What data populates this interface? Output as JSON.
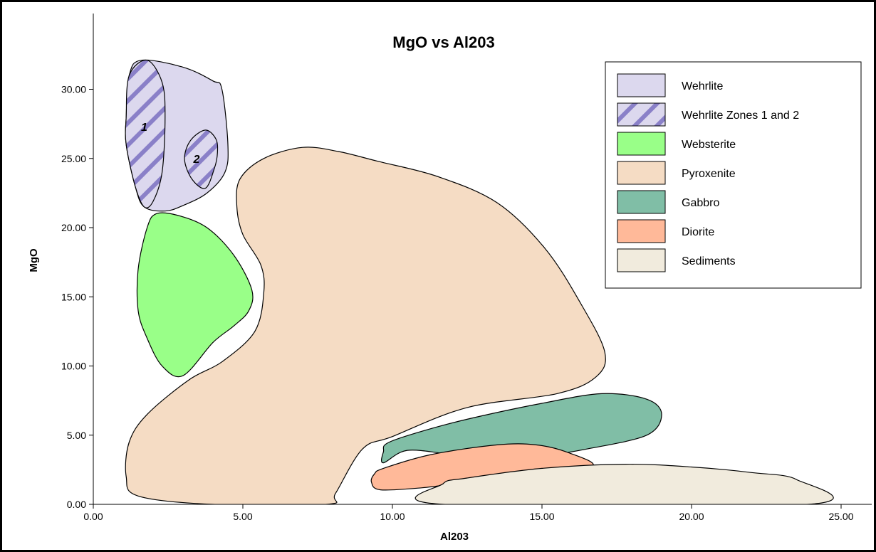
{
  "chart_data": {
    "type": "area",
    "title": "MgO vs Al203",
    "xlabel": "Al203",
    "ylabel": "MgO",
    "xlim": [
      0,
      25.5
    ],
    "ylim": [
      0,
      33
    ],
    "x_ticks": [
      "0.00",
      "5.00",
      "10.00",
      "15.00",
      "20.00",
      "25.00"
    ],
    "y_ticks": [
      "0.00",
      "5.00",
      "10.00",
      "15.00",
      "20.00",
      "25.00",
      "30.00"
    ],
    "legend_position": "top-right",
    "grid": false,
    "legend": [
      {
        "label": "Wehrlite",
        "color": "#dcd8ee",
        "pattern": "solid"
      },
      {
        "label": "Wehrlite Zones 1 and 2",
        "color": "#dcd8ee",
        "pattern": "hatch",
        "hatch_color": "#8a80c8"
      },
      {
        "label": "Websterite",
        "color": "#99ff88",
        "pattern": "solid"
      },
      {
        "label": "Pyroxenite",
        "color": "#f5dcc4",
        "pattern": "solid"
      },
      {
        "label": "Gabbro",
        "color": "#80bea6",
        "pattern": "solid"
      },
      {
        "label": "Diorite",
        "color": "#ffb999",
        "pattern": "solid"
      },
      {
        "label": "Sediments",
        "color": "#f1ebdd",
        "pattern": "solid"
      }
    ],
    "fields": [
      {
        "name": "Pyroxenite",
        "points": [
          [
            5.7,
            25.0
          ],
          [
            7.0,
            25.8
          ],
          [
            8.2,
            25.5
          ],
          [
            9.5,
            24.8
          ],
          [
            11.5,
            23.7
          ],
          [
            13.5,
            21.8
          ],
          [
            15.1,
            18.5
          ],
          [
            16.3,
            14.5
          ],
          [
            17.1,
            11.0
          ],
          [
            16.8,
            9.2
          ],
          [
            15.5,
            8.0
          ],
          [
            12.5,
            7.0
          ],
          [
            10.0,
            4.9
          ],
          [
            9.0,
            4.0
          ],
          [
            8.1,
            0.8
          ],
          [
            7.8,
            0.0
          ],
          [
            4.0,
            0.0
          ],
          [
            1.5,
            0.6
          ],
          [
            1.1,
            2.0
          ],
          [
            1.2,
            4.5
          ],
          [
            1.8,
            6.5
          ],
          [
            3.2,
            9.0
          ],
          [
            4.3,
            10.3
          ],
          [
            5.4,
            12.5
          ],
          [
            5.7,
            15.3
          ],
          [
            5.6,
            17.3
          ],
          [
            5.0,
            19.5
          ],
          [
            4.8,
            21.5
          ],
          [
            4.9,
            23.5
          ]
        ]
      },
      {
        "name": "Websterite",
        "points": [
          [
            2.1,
            21.0
          ],
          [
            2.8,
            20.9
          ],
          [
            3.8,
            20.0
          ],
          [
            4.7,
            18.0
          ],
          [
            5.3,
            15.5
          ],
          [
            5.2,
            14.0
          ],
          [
            4.7,
            12.9
          ],
          [
            4.0,
            11.7
          ],
          [
            3.0,
            9.3
          ],
          [
            2.3,
            10.0
          ],
          [
            1.8,
            12.0
          ],
          [
            1.5,
            14.0
          ],
          [
            1.5,
            17.0
          ],
          [
            1.8,
            20.0
          ]
        ]
      },
      {
        "name": "Wehrlite",
        "points": [
          [
            1.6,
            32.1
          ],
          [
            3.0,
            31.6
          ],
          [
            4.0,
            30.6
          ],
          [
            4.3,
            30.0
          ],
          [
            4.5,
            26.0
          ],
          [
            4.4,
            24.0
          ],
          [
            3.8,
            22.5
          ],
          [
            3.0,
            21.6
          ],
          [
            2.4,
            21.2
          ],
          [
            1.7,
            21.5
          ],
          [
            1.4,
            23.0
          ],
          [
            1.1,
            26.0
          ],
          [
            1.1,
            28.0
          ],
          [
            1.2,
            31.0
          ]
        ]
      },
      {
        "name": "Wehrlite Zones 1 and 2",
        "points": [
          [
            1.8,
            32.1
          ],
          [
            2.3,
            30.5
          ],
          [
            2.4,
            28.0
          ],
          [
            2.3,
            24.0
          ],
          [
            2.0,
            21.9
          ],
          [
            1.7,
            21.5
          ],
          [
            1.4,
            23.0
          ],
          [
            1.1,
            26.0
          ],
          [
            1.1,
            28.0
          ],
          [
            1.2,
            31.0
          ]
        ]
      },
      {
        "name": "Wehrlite Zones 1 and 2",
        "points": [
          [
            3.75,
            27.05
          ],
          [
            4.1,
            26.4
          ],
          [
            4.15,
            25.4
          ],
          [
            4.05,
            24.3
          ],
          [
            3.75,
            22.85
          ],
          [
            3.3,
            23.5
          ],
          [
            3.05,
            24.95
          ],
          [
            3.25,
            26.3
          ]
        ]
      },
      {
        "name": "Gabbro",
        "points": [
          [
            9.9,
            4.5
          ],
          [
            11.5,
            5.6
          ],
          [
            13.0,
            6.4
          ],
          [
            15.0,
            7.3
          ],
          [
            17.0,
            8.0
          ],
          [
            18.5,
            7.6
          ],
          [
            19.0,
            6.5
          ],
          [
            18.5,
            5.0
          ],
          [
            16.5,
            4.0
          ],
          [
            15.0,
            3.5
          ],
          [
            13.5,
            3.3
          ],
          [
            12.0,
            3.6
          ],
          [
            10.5,
            3.9
          ],
          [
            9.7,
            3.0
          ],
          [
            9.7,
            3.8
          ]
        ]
      },
      {
        "name": "Diorite",
        "points": [
          [
            9.7,
            2.6
          ],
          [
            11.3,
            3.6
          ],
          [
            13.5,
            4.3
          ],
          [
            14.8,
            4.3
          ],
          [
            15.8,
            3.8
          ],
          [
            16.7,
            2.8
          ],
          [
            15.0,
            2.2
          ],
          [
            12.5,
            1.6
          ],
          [
            11.0,
            1.2
          ],
          [
            9.6,
            1.05
          ],
          [
            9.3,
            1.6
          ],
          [
            9.4,
            2.2
          ]
        ]
      },
      {
        "name": "Sediments",
        "points": [
          [
            11.7,
            1.5
          ],
          [
            12.5,
            1.9
          ],
          [
            15.0,
            2.6
          ],
          [
            17.8,
            2.9
          ],
          [
            20.0,
            2.7
          ],
          [
            22.0,
            2.3
          ],
          [
            23.5,
            1.8
          ],
          [
            23.9,
            0.0
          ],
          [
            11.7,
            0.0
          ]
        ]
      }
    ],
    "annotations": [
      {
        "text": "1",
        "x": 1.7,
        "y": 27.3
      },
      {
        "text": "2",
        "x": 3.45,
        "y": 25.0
      }
    ]
  }
}
